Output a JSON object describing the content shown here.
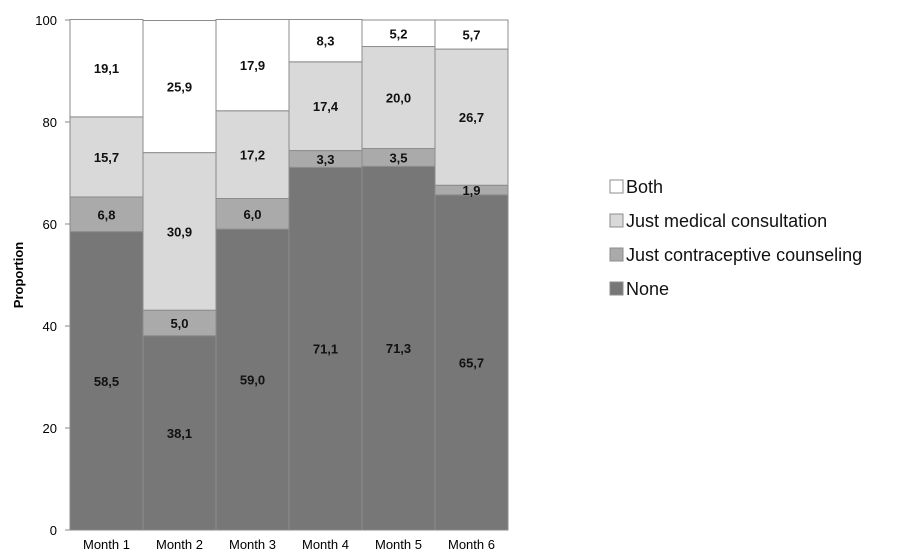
{
  "chart_data": {
    "type": "bar",
    "stacked": true,
    "title": "",
    "xlabel": "",
    "ylabel": "Proportion",
    "ylim": [
      0,
      100
    ],
    "yticks": [
      0,
      20,
      40,
      60,
      80,
      100
    ],
    "grid": false,
    "legend_position": "right",
    "categories": [
      "Month 1",
      "Month 2",
      "Month 3",
      "Month 4",
      "Month 5",
      "Month 6"
    ],
    "series": [
      {
        "name": "None",
        "color": "#777777",
        "values": [
          58.5,
          38.1,
          59.0,
          71.1,
          71.3,
          65.7
        ],
        "labels": [
          "58,5",
          "38,1",
          "59,0",
          "71,1",
          "71,3",
          "65,7"
        ]
      },
      {
        "name": "Just contraceptive counseling",
        "color": "#aaaaaa",
        "values": [
          6.8,
          5.0,
          6.0,
          3.3,
          3.5,
          1.9
        ],
        "labels": [
          "6,8",
          "5,0",
          "6,0",
          "3,3",
          "3,5",
          "1,9"
        ]
      },
      {
        "name": "Just medical consultation",
        "color": "#d9d9d9",
        "values": [
          15.7,
          30.9,
          17.2,
          17.4,
          20.0,
          26.7
        ],
        "labels": [
          "15,7",
          "30,9",
          "17,2",
          "17,4",
          "20,0",
          "26,7"
        ]
      },
      {
        "name": "Both",
        "color": "#ffffff",
        "values": [
          19.1,
          25.9,
          17.9,
          8.3,
          5.2,
          5.7
        ],
        "labels": [
          "19,1",
          "25,9",
          "17,9",
          "8,3",
          "5,2",
          "5,7"
        ]
      }
    ],
    "legend_order": [
      "Both",
      "Just medical consultation",
      "Just contraceptive counseling",
      "None"
    ]
  }
}
